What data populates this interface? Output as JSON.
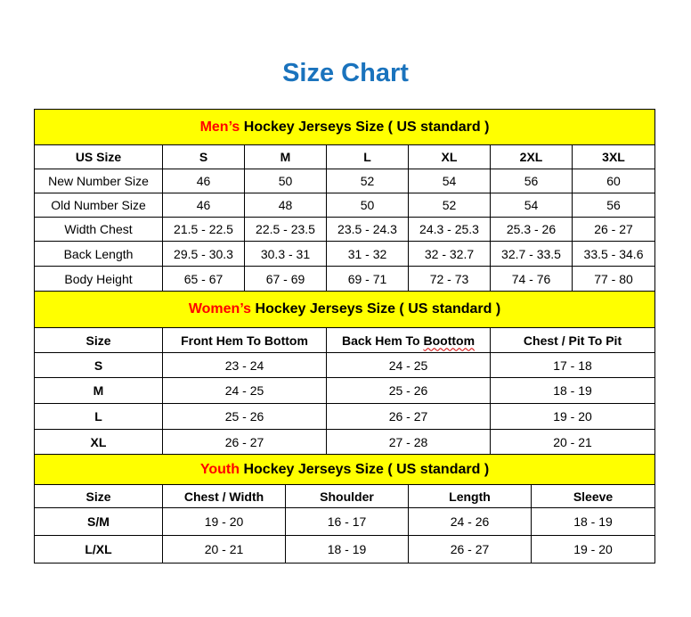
{
  "title": "Size Chart",
  "colors": {
    "title": "#1a73bd",
    "header_bg": "#ffff00",
    "highlight": "#ff0000"
  },
  "men": {
    "highlight": "Men’s",
    "heading": " Hockey Jerseys Size ( US standard )",
    "columns": [
      "US Size",
      "S",
      "M",
      "L",
      "XL",
      "2XL",
      "3XL"
    ],
    "rows": [
      [
        "New Number Size",
        "46",
        "50",
        "52",
        "54",
        "56",
        "60"
      ],
      [
        "Old Number Size",
        "46",
        "48",
        "50",
        "52",
        "54",
        "56"
      ],
      [
        "Width Chest",
        "21.5 - 22.5",
        "22.5 - 23.5",
        "23.5 - 24.3",
        "24.3 - 25.3",
        "25.3 - 26",
        "26 - 27"
      ],
      [
        "Back Length",
        "29.5 - 30.3",
        "30.3 - 31",
        "31 - 32",
        "32 - 32.7",
        "32.7 - 33.5",
        "33.5 - 34.6"
      ],
      [
        "Body Height",
        "65 - 67",
        "67 - 69",
        "69 - 71",
        "72 - 73",
        "74 - 76",
        "77 - 80"
      ]
    ]
  },
  "women": {
    "highlight": "Women’s",
    "heading": " Hockey Jerseys Size ( US standard )",
    "columns": [
      "Size",
      "Front Hem To Bottom",
      "Back Hem To Boottom",
      "Chest / Pit To Pit"
    ],
    "rows": [
      [
        "S",
        "23 - 24",
        "24 - 25",
        "17 - 18"
      ],
      [
        "M",
        "24 - 25",
        "25 - 26",
        "18 - 19"
      ],
      [
        "L",
        "25 - 26",
        "26 - 27",
        "19 - 20"
      ],
      [
        "XL",
        "26 - 27",
        "27 - 28",
        "20 - 21"
      ]
    ]
  },
  "youth": {
    "highlight": "Youth",
    "heading": " Hockey Jerseys Size ( US standard )",
    "columns": [
      "Size",
      "Chest / Width",
      "Shoulder",
      "Length",
      "Sleeve"
    ],
    "rows": [
      [
        "S/M",
        "19 - 20",
        "16 - 17",
        "24 - 26",
        "18 - 19"
      ],
      [
        "L/XL",
        "20 - 21",
        "18 - 19",
        "26 - 27",
        "19 - 20"
      ]
    ]
  }
}
